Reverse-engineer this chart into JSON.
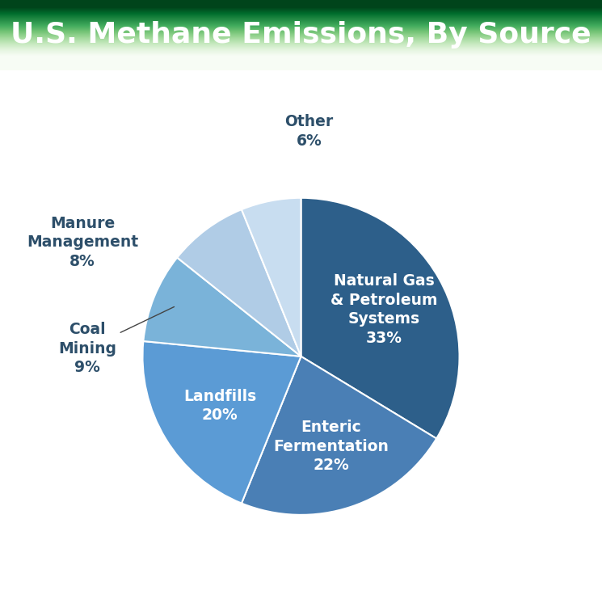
{
  "title": "U.S. Methane Emissions, By Source",
  "title_bg_color_top": "#6aaa50",
  "title_bg_color_bottom": "#4a8a35",
  "title_text_color": "#ffffff",
  "background_color": "#ffffff",
  "slices": [
    {
      "label": "Natural Gas\n& Petroleum\nSystems",
      "pct": 33,
      "color": "#2d5f8a",
      "text_color": "#ffffff",
      "label_inside": true
    },
    {
      "label": "Enteric\nFermentation",
      "pct": 22,
      "color": "#4a7fb5",
      "text_color": "#ffffff",
      "label_inside": true
    },
    {
      "label": "Landfills",
      "pct": 20,
      "color": "#5b9bd5",
      "text_color": "#ffffff",
      "label_inside": true
    },
    {
      "label": "Coal\nMining\n9%",
      "pct": 9,
      "color": "#7ab3d9",
      "text_color": "#2d4f6a",
      "label_inside": false
    },
    {
      "label": "Manure\nManagement\n8%",
      "pct": 8,
      "color": "#b0cce6",
      "text_color": "#2d4f6a",
      "label_inside": false
    },
    {
      "label": "Other\n6%",
      "pct": 6,
      "color": "#c8ddf0",
      "text_color": "#2d4f6a",
      "label_inside": false
    }
  ],
  "startangle": 90,
  "figsize": [
    7.45,
    7.36
  ],
  "dpi": 100
}
